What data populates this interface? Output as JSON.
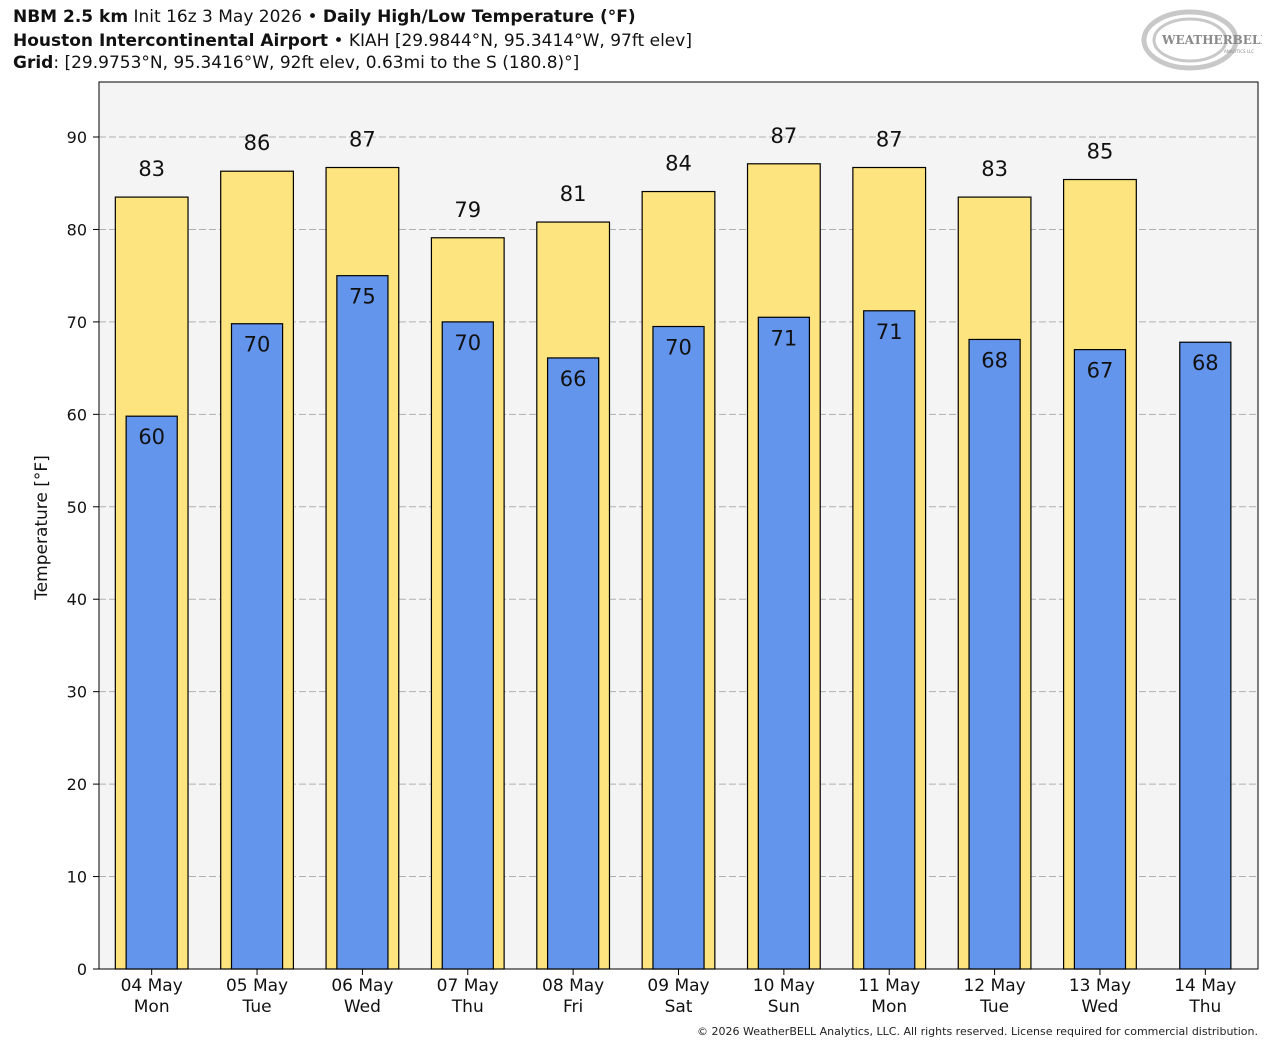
{
  "header": {
    "line1_bold_a": "NBM 2.5 km",
    "line1_text": " Init 16z 3 May 2026 • ",
    "line1_bold_b": "Daily High/Low Temperature (°F)",
    "line2_bold": "Houston Intercontinental Airport",
    "line2_text": " • KIAH [29.9844°N, 95.3414°W, 97ft elev]",
    "line3_bold": "Grid",
    "line3_text": ": [29.9753°N, 95.3416°W, 92ft elev, 0.63mi to the S (180.8)°]"
  },
  "logo": {
    "text": "WEATHERBELL",
    "subtext": "ANALYTICS LLC"
  },
  "copyright": "© 2026 WeatherBELL Analytics, LLC. All rights reserved. License required for commercial distribution.",
  "colors": {
    "high": "#fde47f",
    "low": "#6495ed",
    "plot_bg": "#f4f4f4",
    "grid": "#b0b0b0"
  },
  "chart_data": {
    "type": "bar",
    "ylabel": "Temperature [°F]",
    "ylim": [
      0,
      90
    ],
    "yticks": [
      0,
      10,
      20,
      30,
      40,
      50,
      60,
      70,
      80,
      90
    ],
    "grid": true,
    "categories": [
      [
        "04 May",
        "Mon"
      ],
      [
        "05 May",
        "Tue"
      ],
      [
        "06 May",
        "Wed"
      ],
      [
        "07 May",
        "Thu"
      ],
      [
        "08 May",
        "Fri"
      ],
      [
        "09 May",
        "Sat"
      ],
      [
        "10 May",
        "Sun"
      ],
      [
        "11 May",
        "Mon"
      ],
      [
        "12 May",
        "Tue"
      ],
      [
        "13 May",
        "Wed"
      ],
      [
        "14 May",
        "Thu"
      ]
    ],
    "series": [
      {
        "key": "high",
        "values": [
          83.5,
          86.3,
          86.7,
          79.1,
          80.8,
          84.1,
          87.1,
          86.7,
          83.5,
          85.4,
          null
        ],
        "labels": [
          "83",
          "86",
          "87",
          "79",
          "81",
          "84",
          "87",
          "87",
          "83",
          "85",
          null
        ]
      },
      {
        "key": "low",
        "values": [
          59.8,
          69.8,
          75.0,
          70.0,
          66.1,
          69.5,
          70.5,
          71.2,
          68.1,
          67.0,
          67.8
        ],
        "labels": [
          "60",
          "70",
          "75",
          "70",
          "66",
          "70",
          "71",
          "71",
          "68",
          "67",
          "68"
        ]
      }
    ]
  }
}
